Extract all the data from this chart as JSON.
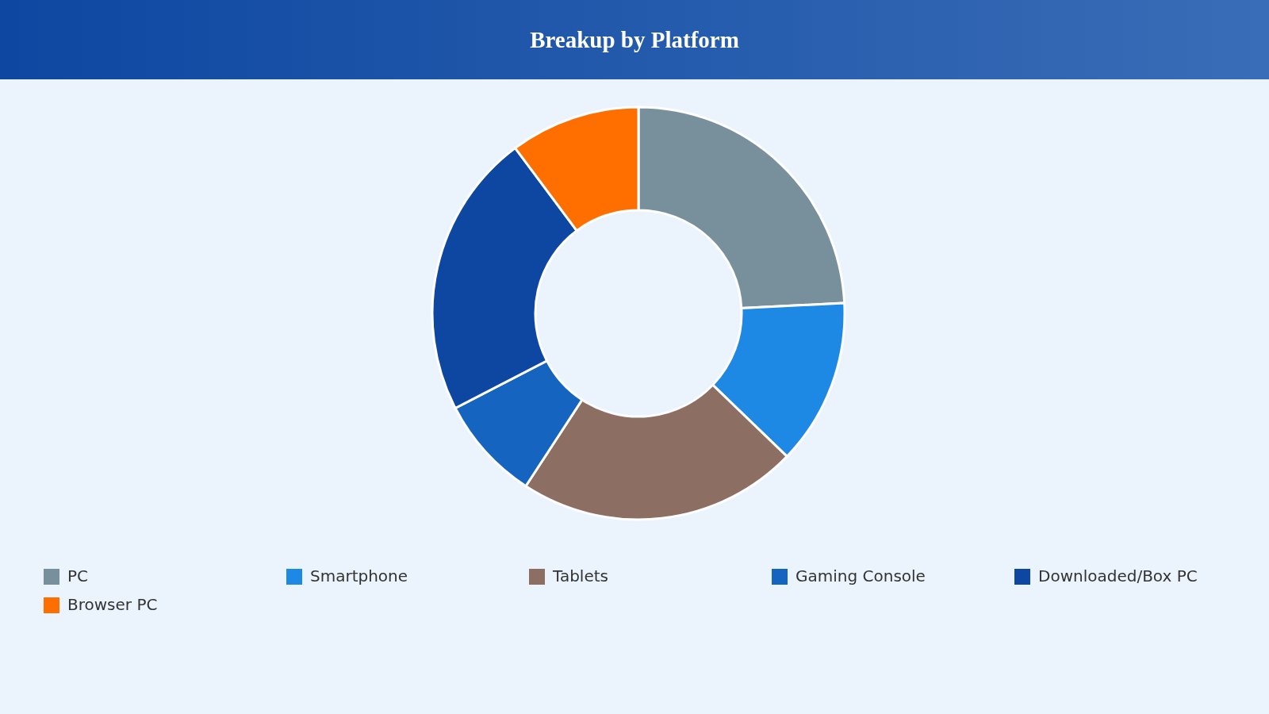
{
  "chart_data": {
    "type": "donut",
    "title": "Breakup by Platform",
    "categories": [
      "PC",
      "Smartphone",
      "Tablets",
      "Gaming Console",
      "Downloaded/Box PC",
      "Browser PC"
    ],
    "values": [
      24.2,
      13,
      22,
      8.2,
      22.4,
      10.2
    ],
    "colors": [
      "#78909c",
      "#1e88e5",
      "#8d6e63",
      "#1565c0",
      "#0d47a1",
      "#ff6f00"
    ],
    "legend": "bottom"
  }
}
